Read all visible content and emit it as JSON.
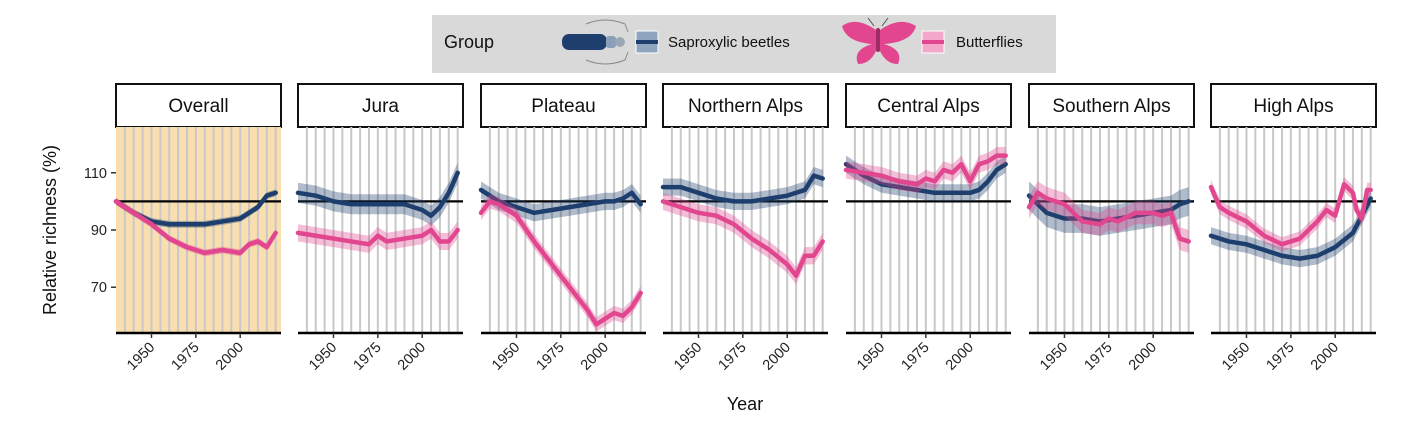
{
  "legend": {
    "title": "Group",
    "items": [
      {
        "label": "Saproxylic beetles",
        "color": "#1e3f6e",
        "icon": "beetle-icon"
      },
      {
        "label": "Butterflies",
        "color": "#e2468f",
        "icon": "butterfly-icon"
      }
    ]
  },
  "chart_data": {
    "type": "line",
    "xlabel": "Year",
    "ylabel": "Relative richness (%)",
    "xlim": [
      1930,
      2023
    ],
    "ylim": [
      54,
      126
    ],
    "x_ticks": [
      1950,
      1975,
      2000
    ],
    "y_ticks": [
      70,
      90,
      110
    ],
    "reference_line": 100,
    "highlight_panel": "Overall",
    "highlight_color": "#f9deaf",
    "panels": [
      {
        "name": "Overall",
        "series": [
          {
            "name": "Saproxylic beetles",
            "x": [
              1930,
              1940,
              1950,
              1960,
              1970,
              1980,
              1990,
              2000,
              2010,
              2015,
              2020
            ],
            "y": [
              100,
              96,
              93,
              92,
              92,
              92,
              93,
              94,
              98,
              102,
              103
            ],
            "band": 1.2
          },
          {
            "name": "Butterflies",
            "x": [
              1930,
              1940,
              1950,
              1960,
              1970,
              1980,
              1990,
              2000,
              2005,
              2010,
              2015,
              2020
            ],
            "y": [
              100,
              96,
              92,
              87,
              84,
              82,
              83,
              82,
              85,
              86,
              84,
              89
            ],
            "band": 1.2
          }
        ]
      },
      {
        "name": "Jura",
        "series": [
          {
            "name": "Saproxylic beetles",
            "x": [
              1930,
              1940,
              1950,
              1960,
              1970,
              1980,
              1990,
              2000,
              2005,
              2010,
              2015,
              2020
            ],
            "y": [
              103,
              102,
              100,
              99,
              99,
              99,
              99,
              97,
              95,
              98,
              103,
              110
            ],
            "band": 3.5
          },
          {
            "name": "Butterflies",
            "x": [
              1930,
              1940,
              1950,
              1960,
              1970,
              1975,
              1980,
              1990,
              2000,
              2005,
              2010,
              2015,
              2020
            ],
            "y": [
              89,
              88,
              87,
              86,
              85,
              88,
              86,
              87,
              88,
              90,
              86,
              86,
              90
            ],
            "band": 3
          }
        ]
      },
      {
        "name": "Plateau",
        "series": [
          {
            "name": "Saproxylic beetles",
            "x": [
              1930,
              1940,
              1950,
              1960,
              1970,
              1980,
              1990,
              2000,
              2005,
              2010,
              2015,
              2020
            ],
            "y": [
              104,
              100,
              98,
              96,
              97,
              98,
              99,
              100,
              100,
              101,
              103,
              99
            ],
            "band": 3
          },
          {
            "name": "Butterflies",
            "x": [
              1930,
              1935,
              1940,
              1950,
              1960,
              1970,
              1980,
              1990,
              1995,
              2000,
              2005,
              2010,
              2015,
              2020
            ],
            "y": [
              96,
              100,
              99,
              95,
              86,
              78,
              70,
              62,
              57,
              59,
              61,
              60,
              63,
              68
            ],
            "band": 2.5
          }
        ]
      },
      {
        "name": "Northern Alps",
        "series": [
          {
            "name": "Saproxylic beetles",
            "x": [
              1930,
              1940,
              1950,
              1960,
              1970,
              1980,
              1990,
              2000,
              2010,
              2015,
              2020
            ],
            "y": [
              105,
              105,
              103,
              101,
              100,
              100,
              101,
              102,
              104,
              109,
              108
            ],
            "band": 3
          },
          {
            "name": "Butterflies",
            "x": [
              1930,
              1940,
              1950,
              1960,
              1970,
              1980,
              1990,
              2000,
              2005,
              2010,
              2015,
              2020
            ],
            "y": [
              100,
              98,
              96,
              95,
              92,
              87,
              83,
              78,
              74,
              81,
              81,
              86
            ],
            "band": 3
          }
        ]
      },
      {
        "name": "Central Alps",
        "series": [
          {
            "name": "Saproxylic beetles",
            "x": [
              1930,
              1940,
              1950,
              1960,
              1970,
              1980,
              1990,
              2000,
              2005,
              2010,
              2015,
              2020
            ],
            "y": [
              113,
              109,
              106,
              105,
              104,
              103,
              103,
              103,
              104,
              107,
              111,
              113
            ],
            "band": 3
          },
          {
            "name": "Butterflies",
            "x": [
              1930,
              1940,
              1950,
              1960,
              1970,
              1975,
              1980,
              1985,
              1990,
              1995,
              2000,
              2005,
              2010,
              2015,
              2020
            ],
            "y": [
              111,
              110,
              109,
              107,
              106,
              108,
              107,
              111,
              110,
              113,
              107,
              113,
              114,
              116,
              116
            ],
            "band": 3
          }
        ]
      },
      {
        "name": "Southern Alps",
        "series": [
          {
            "name": "Saproxylic beetles",
            "x": [
              1930,
              1940,
              1950,
              1960,
              1970,
              1980,
              1990,
              2000,
              2010,
              2015,
              2020
            ],
            "y": [
              102,
              96,
              94,
              94,
              93,
              94,
              95,
              96,
              97,
              99,
              100
            ],
            "band": 5
          },
          {
            "name": "Butterflies",
            "x": [
              1930,
              1935,
              1940,
              1950,
              1960,
              1970,
              1975,
              1980,
              1990,
              2000,
              2005,
              2010,
              2015,
              2020
            ],
            "y": [
              98,
              103,
              101,
              99,
              93,
              92,
              94,
              93,
              96,
              96,
              95,
              96,
              87,
              86
            ],
            "band": 4
          }
        ]
      },
      {
        "name": "High Alps",
        "series": [
          {
            "name": "Saproxylic beetles",
            "x": [
              1930,
              1940,
              1950,
              1960,
              1970,
              1980,
              1990,
              2000,
              2010,
              2015,
              2020
            ],
            "y": [
              88,
              86,
              85,
              83,
              81,
              80,
              81,
              84,
              89,
              95,
              101
            ],
            "band": 3
          },
          {
            "name": "Butterflies",
            "x": [
              1930,
              1935,
              1940,
              1950,
              1960,
              1970,
              1980,
              1990,
              1995,
              2000,
              2005,
              2010,
              2012,
              2015,
              2018,
              2020
            ],
            "y": [
              105,
              98,
              96,
              93,
              88,
              85,
              87,
              93,
              97,
              95,
              106,
              103,
              97,
              94,
              104,
              104
            ],
            "band": 2.5
          }
        ]
      }
    ]
  }
}
